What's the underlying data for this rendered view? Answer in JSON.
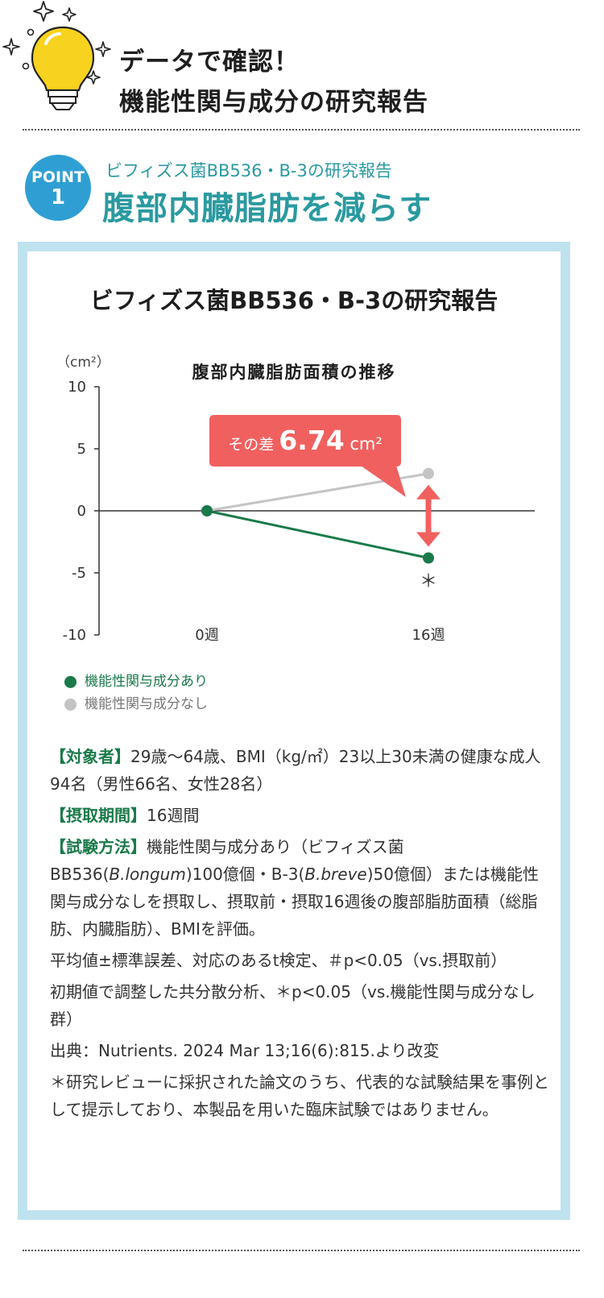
{
  "header": {
    "title_line1": "データで確認！",
    "title_line2": "機能性関与成分の研究報告"
  },
  "point": {
    "badge_label": "POINT",
    "badge_number": "1",
    "subtitle": "ビフィズス菌BB536・B-3の研究報告",
    "title": "腹部内臓脂肪を減らす"
  },
  "box_title": "ビフィズス菌BB536・B-3の研究報告",
  "chart_data": {
    "type": "line",
    "title": "腹部内臓脂肪面積の推移",
    "ylabel": "（cm²）",
    "ylim": [
      -10,
      10
    ],
    "yticks": [
      "10",
      "5",
      "0",
      "-5",
      "-10"
    ],
    "categories": [
      "0週",
      "16週"
    ],
    "series": [
      {
        "name": "機能性関与成分あり",
        "values": [
          0,
          -3.8
        ],
        "color": "#1a7a49"
      },
      {
        "name": "機能性関与成分なし",
        "values": [
          0,
          3.0
        ],
        "color": "#c4c4c4"
      }
    ],
    "annotation": {
      "prefix": "その差",
      "value": "6.74",
      "unit": "cm²"
    },
    "significance_mark": "＊"
  },
  "legend": [
    {
      "label": "機能性関与成分あり",
      "color": "#1a7a49"
    },
    {
      "label": "機能性関与成分なし",
      "color": "#c4c4c4"
    }
  ],
  "notes": {
    "subjects_tag": "【対象者】",
    "subjects": "29歳～64歳、BMI（kg/㎡）23以上30未満の健康な成人94名（男性66名、女性28名）",
    "period_tag": "【摂取期間】",
    "period": "16週間",
    "method_tag": "【試験方法】",
    "method_a": "機能性関与成分あり（ビフィズス菌BB536(",
    "method_b": "B.longum",
    "method_c": ")100億個・B-3(",
    "method_d": "B.breve",
    "method_e": ")50億個）または機能性関与成分なしを摂取し、摂取前・摂取16週後の腹部脂肪面積（総脂肪、内臓脂肪）、BMIを評価。",
    "stats1": "平均値±標準誤差、対応のあるt検定、＃p<0.05（vs.摂取前）",
    "stats2": "初期値で調整した共分散分析、＊p<0.05（vs.機能性関与成分なし群）",
    "source": "出典：Nutrients. 2024 Mar 13;16(6):815.より改変",
    "disclaimer": "＊研究レビューに採択された論文のうち、代表的な試験結果を事例として提示しており、本製品を用いた臨床試験ではありません。"
  }
}
